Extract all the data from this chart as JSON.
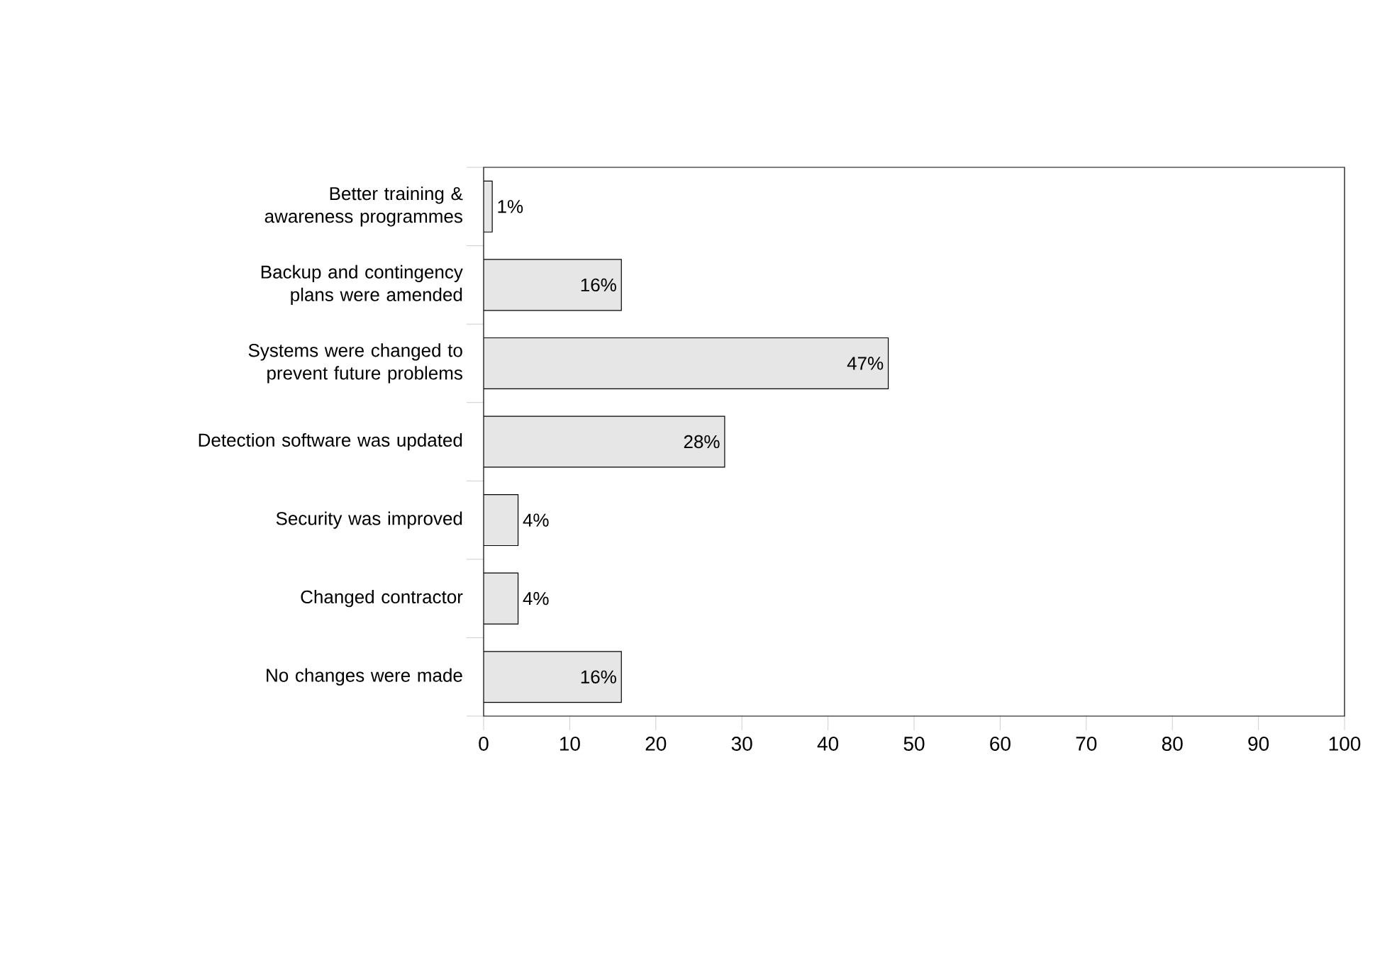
{
  "chart_data": {
    "type": "bar",
    "orientation": "horizontal",
    "categories": [
      "Better training & awareness programmes",
      "Backup and contingency plans were amended",
      "Systems were changed to prevent future problems",
      "Detection software was updated",
      "Security was improved",
      "Changed contractor",
      "No changes were made"
    ],
    "values": [
      1,
      16,
      47,
      28,
      4,
      4,
      16
    ],
    "value_labels": [
      "1%",
      "16%",
      "47%",
      "28%",
      "4%",
      "4%",
      "16%"
    ],
    "color": "#e6e6e6",
    "xlim": [
      0,
      100
    ],
    "xticks": [
      0,
      10,
      20,
      30,
      40,
      50,
      60,
      70,
      80,
      90,
      100
    ],
    "grid": false
  }
}
